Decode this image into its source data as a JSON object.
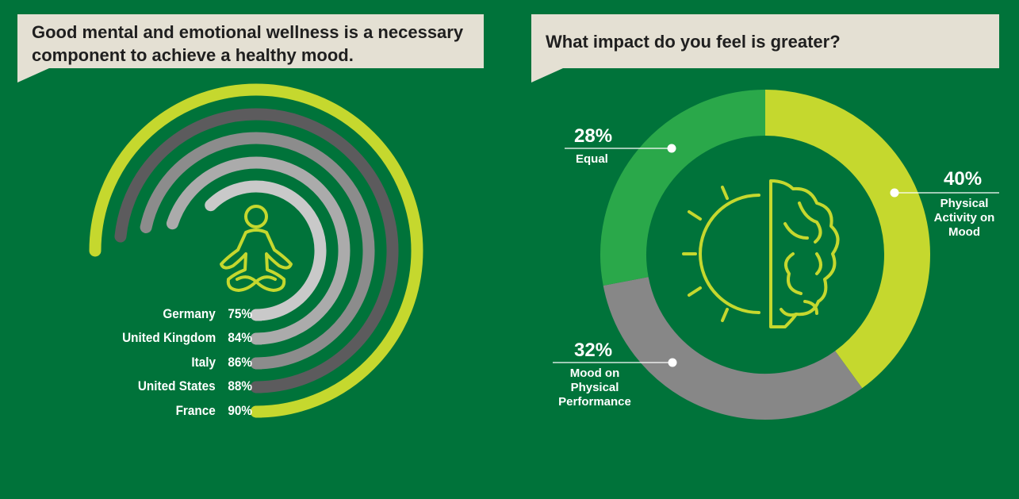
{
  "chart_data": [
    {
      "type": "radial-bar",
      "title": "Good mental and emotional wellness is a necessary component to achieve a healthy mood.",
      "categories": [
        "Germany",
        "United Kingdom",
        "Italy",
        "United States",
        "France"
      ],
      "values": [
        75,
        84,
        86,
        88,
        90
      ],
      "value_labels": [
        "75%",
        "84%",
        "86%",
        "88%",
        "90%"
      ],
      "colors": [
        "#c9c9c9",
        "#ababab",
        "#8c8c8c",
        "#5c5b5d",
        "#c5d82e"
      ],
      "icon": "meditation-icon"
    },
    {
      "type": "pie",
      "title": "What impact do you feel is greater?",
      "categories": [
        "Physical Activity on Mood",
        "Mood on Physical Performance",
        "Equal"
      ],
      "values": [
        40,
        32,
        28
      ],
      "value_labels": [
        "40%",
        "32%",
        "28%"
      ],
      "colors": [
        "#c5d82e",
        "#878787",
        "#2aa84a"
      ],
      "icon": "sun-brain-icon"
    }
  ]
}
